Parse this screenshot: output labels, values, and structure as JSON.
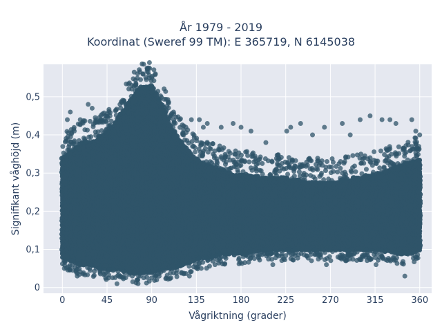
{
  "chart_data": {
    "type": "scatter",
    "title": "År 1979 - 2019",
    "subtitle": "Koordinat (Sweref 99 TM): E 365719, N 6145038",
    "xlabel": "Vågriktning (grader)",
    "ylabel": "Signifikant våghöjd (m)",
    "xlim": [
      -19,
      372
    ],
    "ylim": [
      -0.015,
      0.585
    ],
    "x_ticks": [
      0,
      45,
      90,
      135,
      180,
      225,
      270,
      315,
      360
    ],
    "x_tick_labels": [
      "0",
      "45",
      "90",
      "135",
      "180",
      "225",
      "270",
      "315",
      "360"
    ],
    "y_ticks": [
      0,
      0.1,
      0.2,
      0.3,
      0.4,
      0.5
    ],
    "y_tick_labels": [
      "0",
      "0,1",
      "0,2",
      "0,3",
      "0,4",
      "0,5"
    ],
    "grid": true,
    "marker_color": "#2f5469",
    "plot_bg": "#e5e8f0",
    "series": [
      {
        "points_note": "",
        "envelope": {
          "x": [
            0,
            10,
            20,
            30,
            40,
            50,
            60,
            70,
            80,
            90,
            100,
            110,
            120,
            130,
            140,
            150,
            160,
            170,
            180,
            200,
            220,
            240,
            260,
            280,
            300,
            320,
            340,
            350,
            360
          ],
          "y_low": [
            0.08,
            0.07,
            0.06,
            0.06,
            0.05,
            0.05,
            0.05,
            0.04,
            0.04,
            0.04,
            0.05,
            0.05,
            0.06,
            0.07,
            0.08,
            0.08,
            0.09,
            0.09,
            0.09,
            0.1,
            0.1,
            0.1,
            0.1,
            0.1,
            0.1,
            0.1,
            0.09,
            0.09,
            0.1
          ],
          "y_high": [
            0.34,
            0.36,
            0.38,
            0.38,
            0.4,
            0.42,
            0.46,
            0.5,
            0.53,
            0.53,
            0.48,
            0.42,
            0.38,
            0.35,
            0.33,
            0.32,
            0.31,
            0.3,
            0.3,
            0.29,
            0.29,
            0.28,
            0.28,
            0.28,
            0.29,
            0.3,
            0.32,
            0.33,
            0.34
          ]
        },
        "outliers": [
          [
            2,
            0.05
          ],
          [
            5,
            0.44
          ],
          [
            8,
            0.46
          ],
          [
            12,
            0.41
          ],
          [
            15,
            0.03
          ],
          [
            18,
            0.44
          ],
          [
            26,
            0.48
          ],
          [
            30,
            0.47
          ],
          [
            38,
            0.04
          ],
          [
            42,
            0.44
          ],
          [
            48,
            0.45
          ],
          [
            55,
            0.01
          ],
          [
            58,
            0.48
          ],
          [
            62,
            0.49
          ],
          [
            70,
            0.52
          ],
          [
            76,
            0.02
          ],
          [
            81,
            0.56
          ],
          [
            84,
            0.55
          ],
          [
            90,
            0.55
          ],
          [
            95,
            0.02
          ],
          [
            112,
            0.46
          ],
          [
            118,
            0.44
          ],
          [
            128,
            0.03
          ],
          [
            130,
            0.44
          ],
          [
            138,
            0.44
          ],
          [
            142,
            0.42
          ],
          [
            146,
            0.43
          ],
          [
            160,
            0.42
          ],
          [
            172,
            0.43
          ],
          [
            180,
            0.42
          ],
          [
            190,
            0.41
          ],
          [
            205,
            0.38
          ],
          [
            212,
            0.06
          ],
          [
            226,
            0.41
          ],
          [
            230,
            0.42
          ],
          [
            240,
            0.43
          ],
          [
            252,
            0.4
          ],
          [
            264,
            0.42
          ],
          [
            266,
            0.06
          ],
          [
            282,
            0.43
          ],
          [
            290,
            0.4
          ],
          [
            300,
            0.44
          ],
          [
            310,
            0.45
          ],
          [
            316,
            0.06
          ],
          [
            322,
            0.44
          ],
          [
            330,
            0.44
          ],
          [
            336,
            0.43
          ],
          [
            345,
            0.03
          ],
          [
            352,
            0.44
          ],
          [
            356,
            0.41
          ],
          [
            360,
            0.4
          ]
        ]
      }
    ]
  }
}
